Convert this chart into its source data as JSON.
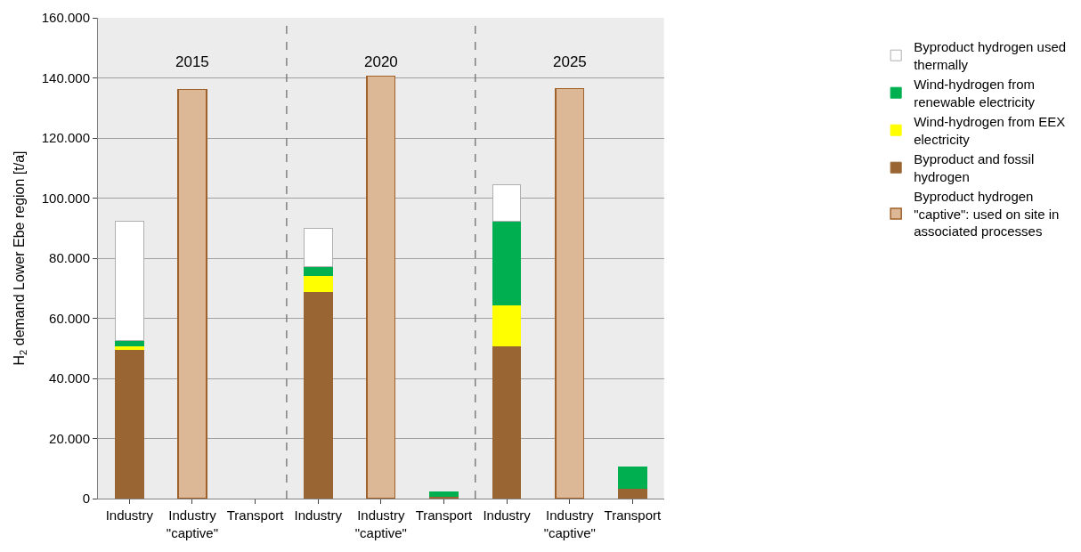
{
  "chart_data": {
    "type": "bar",
    "stacked": true,
    "ylabel": "H$_{2}$ demand Lower Ebe region [t/a]",
    "categories": [
      "Industry",
      "Industry\n\"captive\"",
      "Transport",
      "Industry",
      "Industry\n\"captive\"",
      "Transport",
      "Industry",
      "Industry\n\"captive\"",
      "Transport"
    ],
    "series": [
      {
        "name": "Byproduct and fossil hydrogen",
        "color": "#996633",
        "values": [
          49700,
          null,
          null,
          69000,
          null,
          700,
          50700,
          null,
          3300
        ]
      },
      {
        "name": "Wind-hydrogen from EEX electricity",
        "color": "#ffff00",
        "values": [
          1200,
          null,
          null,
          5300,
          null,
          null,
          13800,
          null,
          null
        ]
      },
      {
        "name": "Wind-hydrogen from renewable electricity",
        "color": "#00b050",
        "values": [
          1800,
          null,
          null,
          3000,
          null,
          1400,
          27700,
          null,
          7100
        ]
      },
      {
        "name": "Byproduct hydrogen used thermally",
        "color": "#ffffff",
        "values": [
          39500,
          null,
          null,
          12600,
          null,
          null,
          12300,
          null,
          null
        ]
      },
      {
        "name": "Byproduct hydrogen \"captive\": used on site in associated processes",
        "color": "#dcb896",
        "values": [
          null,
          136100,
          null,
          null,
          140600,
          null,
          null,
          136400,
          null
        ]
      }
    ],
    "ylim": [
      0,
      160000
    ],
    "yticks": [
      {
        "value": 0,
        "label": "0"
      },
      {
        "value": 20000,
        "label": "20.000"
      },
      {
        "value": 40000,
        "label": "40.000"
      },
      {
        "value": 60000,
        "label": "60.000"
      },
      {
        "value": 80000,
        "label": "80.000"
      },
      {
        "value": 100000,
        "label": "100.000"
      },
      {
        "value": 120000,
        "label": "120.000"
      },
      {
        "value": 140000,
        "label": "140.000"
      },
      {
        "value": 160000,
        "label": "160.000"
      }
    ],
    "annotations": [
      "2015",
      "2020",
      "2025"
    ],
    "grid": "y",
    "legend": "right"
  }
}
